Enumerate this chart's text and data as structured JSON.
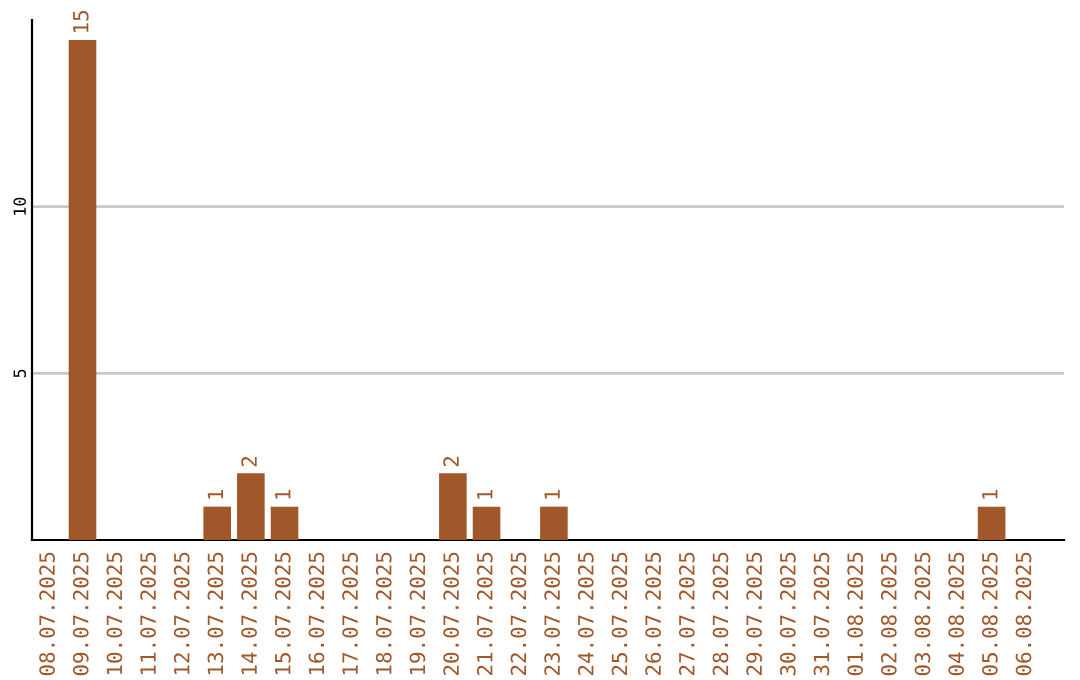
{
  "chart_data": {
    "type": "bar",
    "categories": [
      "08.07.2025",
      "09.07.2025",
      "10.07.2025",
      "11.07.2025",
      "12.07.2025",
      "13.07.2025",
      "14.07.2025",
      "15.07.2025",
      "16.07.2025",
      "17.07.2025",
      "18.07.2025",
      "19.07.2025",
      "20.07.2025",
      "21.07.2025",
      "22.07.2025",
      "23.07.2025",
      "24.07.2025",
      "25.07.2025",
      "26.07.2025",
      "27.07.2025",
      "28.07.2025",
      "29.07.2025",
      "30.07.2025",
      "31.07.2025",
      "01.08.2025",
      "02.08.2025",
      "03.08.2025",
      "04.08.2025",
      "05.08.2025",
      "06.08.2025"
    ],
    "values": [
      0,
      15,
      0,
      0,
      0,
      1,
      2,
      1,
      0,
      0,
      0,
      0,
      2,
      1,
      0,
      1,
      0,
      0,
      0,
      0,
      0,
      0,
      0,
      0,
      0,
      0,
      0,
      0,
      1,
      0
    ],
    "value_labels": [
      null,
      "15",
      null,
      null,
      null,
      "1",
      "2",
      "1",
      null,
      null,
      null,
      null,
      "2",
      "1",
      null,
      "1",
      null,
      null,
      null,
      null,
      null,
      null,
      null,
      null,
      null,
      null,
      null,
      null,
      "1",
      null
    ],
    "color": "#a0572a",
    "ylim": [
      0,
      15.6
    ],
    "yticks": [
      5,
      10
    ],
    "grid": "y"
  }
}
